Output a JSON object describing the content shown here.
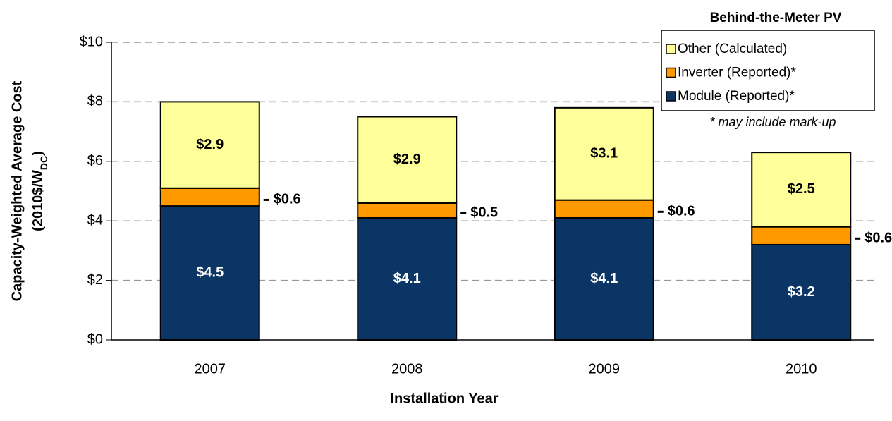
{
  "chart_data": {
    "type": "stacked_bar",
    "x_label": "Installation Year",
    "y_label": "Capacity-Weighted  Average  Cost",
    "y_label_units": {
      "text": "(2010$/W",
      "sub": "DC",
      "end": ")"
    },
    "categories": [
      "2007",
      "2008",
      "2009",
      "2010"
    ],
    "series": [
      {
        "name": "Module (Reported)*",
        "color": "#0b3564",
        "values": [
          4.5,
          4.1,
          4.1,
          3.2
        ],
        "value_labels": [
          "$4.5",
          "$4.1",
          "$4.1",
          "$3.2"
        ]
      },
      {
        "name": "Inverter (Reported)*",
        "color": "#ff9900",
        "values": [
          0.6,
          0.5,
          0.6,
          0.6
        ],
        "value_labels": [
          "$0.6",
          "$0.5",
          "$0.6",
          "$0.6"
        ]
      },
      {
        "name": "Other (Calculated)",
        "color": "#ffff99",
        "values": [
          2.9,
          2.9,
          3.1,
          2.5
        ],
        "value_labels": [
          "$2.9",
          "$2.9",
          "$3.1",
          "$2.5"
        ]
      }
    ],
    "ylim": [
      0,
      10
    ],
    "yticks": [
      {
        "value": 0,
        "label": "$0"
      },
      {
        "value": 2,
        "label": "$2"
      },
      {
        "value": 4,
        "label": "$4"
      },
      {
        "value": 6,
        "label": "$6"
      },
      {
        "value": 8,
        "label": "$8"
      },
      {
        "value": 10,
        "label": "$10"
      }
    ],
    "grid": true,
    "legend": {
      "title": "Behind-the-Meter  PV",
      "note": "* may include mark-up",
      "position": "upper right"
    }
  }
}
